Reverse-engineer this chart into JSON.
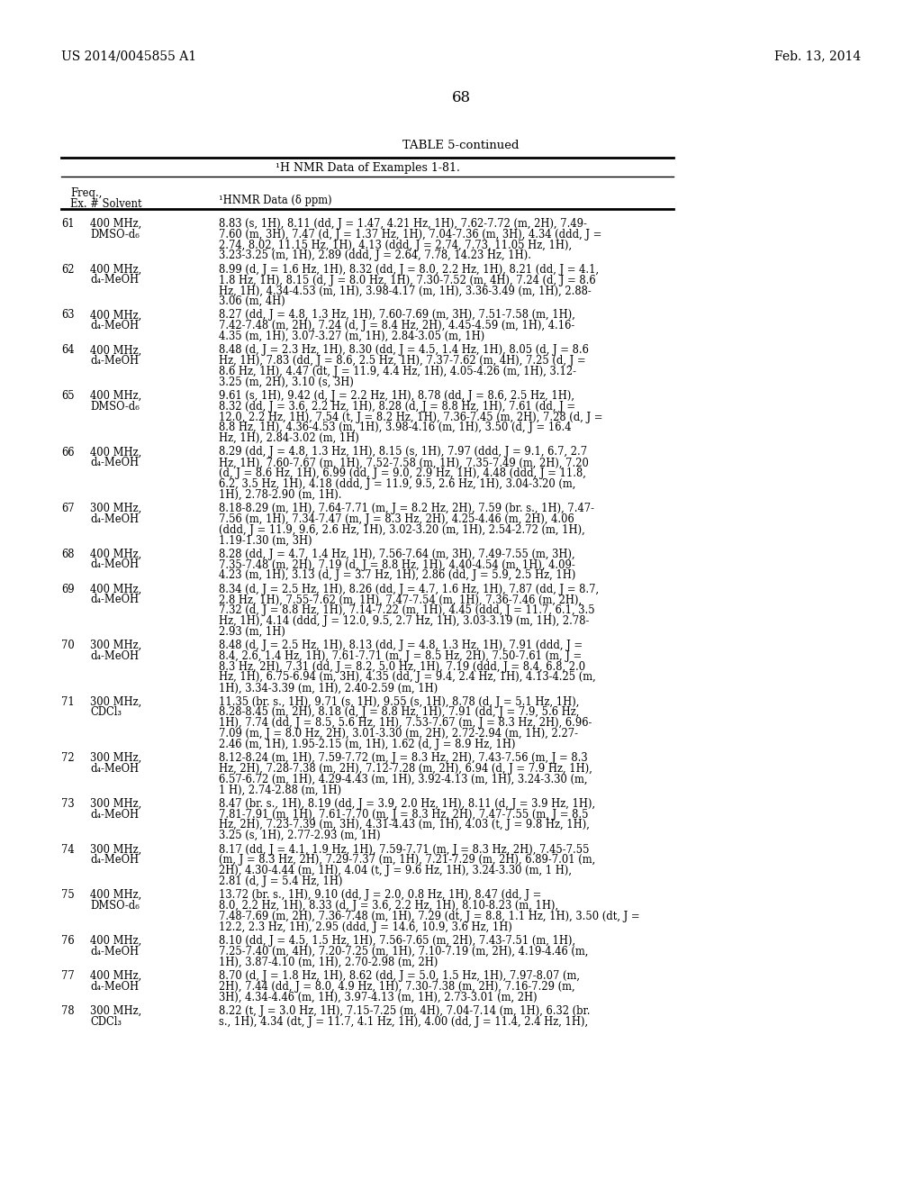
{
  "page_number": "68",
  "patent_number": "US 2014/0045855 A1",
  "patent_date": "Feb. 13, 2014",
  "table_title": "TABLE 5-continued",
  "table_subtitle": "¹H NMR Data of Examples 1-81.",
  "background_color": "#ffffff",
  "rows": [
    {
      "ex": "61",
      "freq": "400 MHz,",
      "solvent": "DMSO-d₆",
      "data": [
        "8.83 (s, 1H), 8.11 (dd, J = 1.47, 4.21 Hz, 1H), 7.62-7.72 (m, 2H), 7.49-",
        "7.60 (m, 3H), 7.47 (d, J = 1.37 Hz, 1H), 7.04-7.36 (m, 3H), 4.34 (ddd, J =",
        "2.74, 8.02, 11.15 Hz, 1H), 4.13 (ddd, J = 2.74, 7.73, 11.05 Hz, 1H),",
        "3.23-3.25 (m, 1H), 2.89 (ddd, J = 2.64, 7.78, 14.23 Hz, 1H)."
      ]
    },
    {
      "ex": "62",
      "freq": "400 MHz,",
      "solvent": "d₄-MeOH",
      "data": [
        "8.99 (d, J = 1.6 Hz, 1H), 8.32 (dd, J = 8.0, 2.2 Hz, 1H), 8.21 (dd, J = 4.1,",
        "1.8 Hz, 1H), 8.15 (d, J = 8.0 Hz, 1H), 7.30-7.52 (m, 4H), 7.24 (d, J = 8.6",
        "Hz, 1H), 4.34-4.53 (m, 1H), 3.98-4.17 (m, 1H), 3.36-3.49 (m, 1H), 2.88-",
        "3.06 (m, 4H)"
      ]
    },
    {
      "ex": "63",
      "freq": "400 MHz,",
      "solvent": "d₄-MeOH",
      "data": [
        "8.27 (dd, J = 4.8, 1.3 Hz, 1H), 7.60-7.69 (m, 3H), 7.51-7.58 (m, 1H),",
        "7.42-7.48 (m, 2H), 7.24 (d, J = 8.4 Hz, 2H), 4.45-4.59 (m, 1H), 4.16-",
        "4.35 (m, 1H), 3.07-3.27 (m, 1H), 2.84-3.05 (m, 1H)"
      ]
    },
    {
      "ex": "64",
      "freq": "400 MHz,",
      "solvent": "d₄-MeOH",
      "data": [
        "8.48 (d, J = 2.3 Hz, 1H), 8.30 (dd, J = 4.5, 1.4 Hz, 1H), 8.05 (d, J = 8.6",
        "Hz, 1H), 7.83 (dd, J = 8.6, 2.5 Hz, 1H), 7.37-7.62 (m, 4H), 7.25 (d, J =",
        "8.6 Hz, 1H), 4.47 (dt, J = 11.9, 4.4 Hz, 1H), 4.05-4.26 (m, 1H), 3.12-",
        "3.25 (m, 2H), 3.10 (s, 3H)"
      ]
    },
    {
      "ex": "65",
      "freq": "400 MHz,",
      "solvent": "DMSO-d₆",
      "data": [
        "9.61 (s, 1H), 9.42 (d, J = 2.2 Hz, 1H), 8.78 (dd, J = 8.6, 2.5 Hz, 1H),",
        "8.32 (dd, J = 3.6, 2.2 Hz, 1H), 8.28 (d, J = 8.8 Hz, 1H), 7.61 (dd, J =",
        "12.0, 2.2 Hz, 1H), 7.54 (t, J = 8.2 Hz, 1H), 7.36-7.45 (m, 2H), 7.28 (d, J =",
        "8.8 Hz, 1H), 4.36-4.53 (m, 1H), 3.98-4.16 (m, 1H), 3.50 (d, J = 16.4",
        "Hz, 1H), 2.84-3.02 (m, 1H)"
      ]
    },
    {
      "ex": "66",
      "freq": "400 MHz,",
      "solvent": "d₄-MeOH",
      "data": [
        "8.29 (dd, J = 4.8, 1.3 Hz, 1H), 8.15 (s, 1H), 7.97 (ddd, J = 9.1, 6.7, 2.7",
        "Hz, 1H), 7.60-7.67 (m, 1H), 7.52-7.58 (m, 1H), 7.35-7.49 (m, 2H), 7.20",
        "(d, J = 8.6 Hz, 1H), 6.99 (dd, J = 9.0, 2.9 Hz, 1H), 4.48 (ddd, J = 11.8,",
        "6.2, 3.5 Hz, 1H), 4.18 (ddd, J = 11.9, 9.5, 2.6 Hz, 1H), 3.04-3.20 (m,",
        "1H), 2.78-2.90 (m, 1H)."
      ]
    },
    {
      "ex": "67",
      "freq": "300 MHz,",
      "solvent": "d₄-MeOH",
      "data": [
        "8.18-8.29 (m, 1H), 7.64-7.71 (m, J = 8.2 Hz, 2H), 7.59 (br. s., 1H), 7.47-",
        "7.56 (m, 1H), 7.34-7.47 (m, J = 8.3 Hz, 2H), 4.25-4.46 (m, 2H), 4.06",
        "(ddd, J = 11.9, 9.6, 2.6 Hz, 1H), 3.02-3.20 (m, 1H), 2.54-2.72 (m, 1H),",
        "1.19-1.30 (m, 3H)"
      ]
    },
    {
      "ex": "68",
      "freq": "400 MHz,",
      "solvent": "d₄-MeOH",
      "data": [
        "8.28 (dd, J = 4.7, 1.4 Hz, 1H), 7.56-7.64 (m, 3H), 7.49-7.55 (m, 3H),",
        "7.35-7.48 (m, 2H), 7.19 (d, J = 8.8 Hz, 1H), 4.40-4.54 (m, 1H), 4.09-",
        "4.23 (m, 1H), 3.13 (d, J = 3.7 Hz, 1H), 2.86 (dd, J = 5.9, 2.5 Hz, 1H)"
      ]
    },
    {
      "ex": "69",
      "freq": "400 MHz,",
      "solvent": "d₄-MeOH",
      "data": [
        "8.34 (d, J = 2.5 Hz, 1H), 8.26 (dd, J = 4.7, 1.6 Hz, 1H), 7.87 (dd, J = 8.7,",
        "2.8 Hz, 1H), 7.55-7.62 (m, 1H), 7.47-7.54 (m, 1H), 7.36-7.46 (m, 2H),",
        "7.32 (d, J = 8.8 Hz, 1H), 7.14-7.22 (m, 1H), 4.45 (ddd, J = 11.7, 6.1, 3.5",
        "Hz, 1H), 4.14 (ddd, J = 12.0, 9.5, 2.7 Hz, 1H), 3.03-3.19 (m, 1H), 2.78-",
        "2.93 (m, 1H)"
      ]
    },
    {
      "ex": "70",
      "freq": "300 MHz,",
      "solvent": "d₄-MeOH",
      "data": [
        "8.48 (d, J = 2.5 Hz, 1H), 8.13 (dd, J = 4.8, 1.3 Hz, 1H), 7.91 (ddd, J =",
        "8.4, 2.6, 1.4 Hz, 1H), 7.61-7.71 (m, J = 8.5 Hz, 2H), 7.50-7.61 (m, J =",
        "8.3 Hz, 2H), 7.31 (dd, J = 8.2, 5.0 Hz, 1H), 7.19 (ddd, J = 8.4, 6.8, 2.0",
        "Hz, 1H), 6.75-6.94 (m, 3H), 4.35 (dd, J = 9.4, 2.4 Hz, 1H), 4.13-4.25 (m,",
        "1H), 3.34-3.39 (m, 1H), 2.40-2.59 (m, 1H)"
      ]
    },
    {
      "ex": "71",
      "freq": "300 MHz,",
      "solvent": "CDCl₃",
      "data": [
        "11.35 (br. s., 1H), 9.71 (s, 1H), 9.55 (s, 1H), 8.78 (d, J = 5.1 Hz, 1H),",
        "8.28-8.45 (m, 2H), 8.18 (d, J = 8.8 Hz, 1H), 7.91 (dd, J = 7.9, 5.6 Hz,",
        "1H), 7.74 (dd, J = 8.5, 5.6 Hz, 1H), 7.53-7.67 (m, J = 8.3 Hz, 2H), 6.96-",
        "7.09 (m, J = 8.0 Hz, 2H), 3.01-3.30 (m, 2H), 2.72-2.94 (m, 1H), 2.27-",
        "2.46 (m, 1H), 1.95-2.15 (m, 1H), 1.62 (d, J = 8.9 Hz, 1H)"
      ]
    },
    {
      "ex": "72",
      "freq": "300 MHz,",
      "solvent": "d₄-MeOH",
      "data": [
        "8.12-8.24 (m, 1H), 7.59-7.72 (m, J = 8.3 Hz, 2H), 7.43-7.56 (m, J = 8.3",
        "Hz, 2H), 7.28-7.38 (m, 2H), 7.12-7.28 (m, 2H), 6.94 (d, J = 7.9 Hz, 1H),",
        "6.57-6.72 (m, 1H), 4.29-4.43 (m, 1H), 3.92-4.13 (m, 1H), 3.24-3.30 (m,",
        "1 H), 2.74-2.88 (m, 1H)"
      ]
    },
    {
      "ex": "73",
      "freq": "300 MHz,",
      "solvent": "d₄-MeOH",
      "data": [
        "8.47 (br. s., 1H), 8.19 (dd, J = 3.9, 2.0 Hz, 1H), 8.11 (d, J = 3.9 Hz, 1H),",
        "7.81-7.91 (m, 1H), 7.61-7.70 (m, J = 8.3 Hz, 2H), 7.47-7.55 (m, J = 8.5",
        "Hz, 2H), 7.23-7.39 (m, 3H), 4.31-4.43 (m, 1H), 4.03 (t, J = 9.8 Hz, 1H),",
        "3.25 (s, 1H), 2.77-2.93 (m, 1H)"
      ]
    },
    {
      "ex": "74",
      "freq": "300 MHz,",
      "solvent": "d₄-MeOH",
      "data": [
        "8.17 (dd, J = 4.1, 1.9 Hz, 1H), 7.59-7.71 (m, J = 8.3 Hz, 2H), 7.45-7.55",
        "(m, J = 8.3 Hz, 2H), 7.29-7.37 (m, 1H), 7.21-7.29 (m, 2H), 6.89-7.01 (m,",
        "2H), 4.30-4.44 (m, 1H), 4.04 (t, J = 9.6 Hz, 1H), 3.24-3.30 (m, 1 H),",
        "2.81 (d, J = 5.4 Hz, 1H)"
      ]
    },
    {
      "ex": "75",
      "freq": "400 MHz,",
      "solvent": "DMSO-d₆",
      "data": [
        "13.72 (br. s., 1H), 9.10 (dd, J = 2.0, 0.8 Hz, 1H), 8.47 (dd, J =",
        "8.0, 2.2 Hz, 1H), 8.33 (d, J = 3.6, 2.2 Hz, 1H), 8.10-8.23 (m, 1H),",
        "7.48-7.69 (m, 2H), 7.36-7.48 (m, 1H), 7.29 (dt, J = 8.8, 1.1 Hz, 1H), 3.50 (dt, J =",
        "12.2, 2.3 Hz, 1H), 2.95 (ddd, J = 14.6, 10.9, 3.6 Hz, 1H)"
      ]
    },
    {
      "ex": "76",
      "freq": "400 MHz,",
      "solvent": "d₄-MeOH",
      "data": [
        "8.10 (dd, J = 4.5, 1.5 Hz, 1H), 7.56-7.65 (m, 2H), 7.43-7.51 (m, 1H),",
        "7.25-7.40 (m, 4H), 7.20-7.25 (m, 1H), 7.10-7.19 (m, 2H), 4.19-4.46 (m,",
        "1H), 3.87-4.10 (m, 1H), 2.70-2.98 (m, 2H)"
      ]
    },
    {
      "ex": "77",
      "freq": "400 MHz,",
      "solvent": "d₄-MeOH",
      "data": [
        "8.70 (d, J = 1.8 Hz, 1H), 8.62 (dd, J = 5.0, 1.5 Hz, 1H), 7.97-8.07 (m,",
        "2H), 7.44 (dd, J = 8.0, 4.9 Hz, 1H), 7.30-7.38 (m, 2H), 7.16-7.29 (m,",
        "3H), 4.34-4.46 (m, 1H), 3.97-4.13 (m, 1H), 2.73-3.01 (m, 2H)"
      ]
    },
    {
      "ex": "78",
      "freq": "300 MHz,",
      "solvent": "CDCl₃",
      "data": [
        "8.22 (t, J = 3.0 Hz, 1H), 7.15-7.25 (m, 4H), 7.04-7.14 (m, 1H), 6.32 (br.",
        "s., 1H), 4.34 (dt, J = 11.7, 4.1 Hz, 1H), 4.00 (dd, J = 11.4, 2.4 Hz, 1H),"
      ]
    }
  ]
}
